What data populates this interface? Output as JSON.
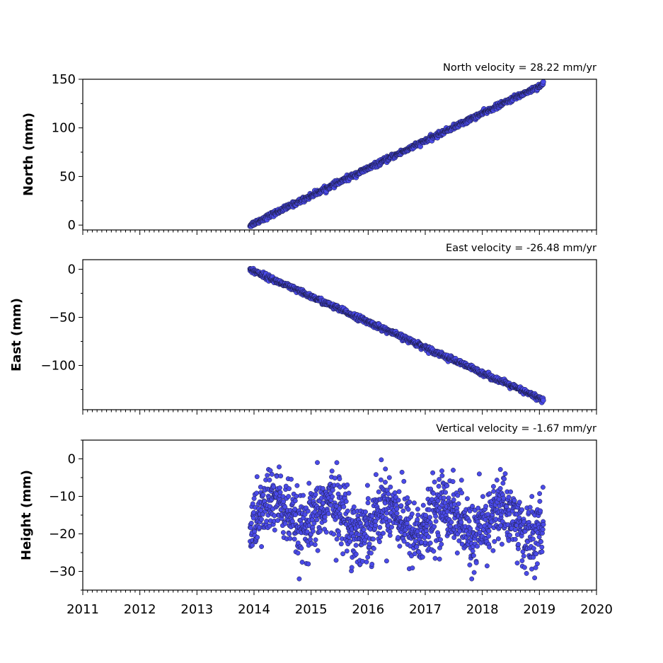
{
  "chart_data": [
    {
      "type": "scatter",
      "title": "North velocity = 28.22 mm/yr",
      "xlabel": "",
      "ylabel": "North (mm)",
      "xlim": [
        2011,
        2020
      ],
      "ylim": [
        -5,
        150
      ],
      "yticks": [
        0,
        50,
        100,
        150
      ],
      "ytick_labels": [
        "0",
        "50",
        "100",
        "150"
      ],
      "trend": {
        "x_start": 2013.93,
        "x_end": 2019.07,
        "y_start": 0,
        "y_end": 145.1,
        "scatter": 1.2
      },
      "marker_color": "#4a4ae8",
      "edge_color": "#1a1a40",
      "grid": false
    },
    {
      "type": "scatter",
      "title": "East velocity = -26.48 mm/yr",
      "xlabel": "",
      "ylabel": "East (mm)",
      "xlim": [
        2011,
        2020
      ],
      "ylim": [
        -146,
        10
      ],
      "yticks": [
        0,
        -50,
        -100
      ],
      "ytick_labels": [
        "0",
        "−50",
        "−100"
      ],
      "trend": {
        "x_start": 2013.93,
        "x_end": 2019.07,
        "y_start": 0,
        "y_end": -136.1,
        "scatter": 1.3
      },
      "marker_color": "#4a4ae8",
      "edge_color": "#1a1a40",
      "grid": false
    },
    {
      "type": "scatter",
      "title": "Vertical velocity = -1.67 mm/yr",
      "xlabel": "",
      "ylabel": "Height (mm)",
      "xlim": [
        2011,
        2020
      ],
      "ylim": [
        -35,
        5
      ],
      "yticks": [
        0,
        -10,
        -20,
        -30
      ],
      "ytick_labels": [
        "0",
        "−10",
        "−20",
        "−30"
      ],
      "xticks": [
        2011,
        2012,
        2013,
        2014,
        2015,
        2016,
        2017,
        2018,
        2019,
        2020
      ],
      "xtick_labels": [
        "2011",
        "2012",
        "2013",
        "2014",
        "2015",
        "2016",
        "2017",
        "2018",
        "2019",
        "2020"
      ],
      "trend": {
        "x_start": 2013.93,
        "x_end": 2019.07,
        "mean_level": -16,
        "seasonal_amplitude": 4,
        "scatter": 4.5,
        "velocity_mm_per_yr": -1.67
      },
      "marker_color": "#4a4ae8",
      "edge_color": "#1a1a40",
      "grid": false
    }
  ]
}
